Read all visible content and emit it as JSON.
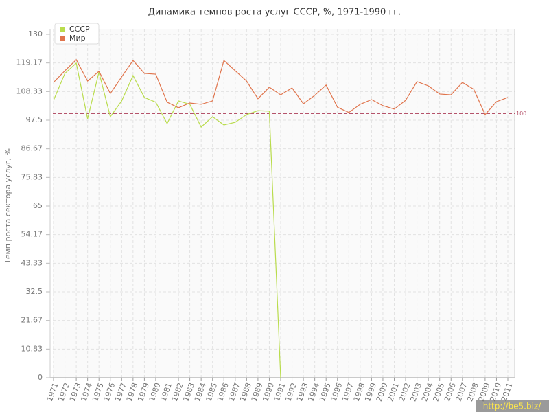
{
  "chart_data": {
    "type": "line",
    "title": "Динамика темпов роста услуг СССР, %, 1971-1990 гг.",
    "y_label": "Темп роста сектора услуг, %",
    "categories": [
      "1971",
      "1972",
      "1973",
      "1974",
      "1975",
      "1976",
      "1977",
      "1978",
      "1979",
      "1980",
      "1981",
      "1982",
      "1983",
      "1984",
      "1985",
      "1986",
      "1987",
      "1988",
      "1989",
      "1990",
      "1991",
      "1992",
      "1993",
      "1994",
      "1995",
      "1996",
      "1997",
      "1998",
      "1999",
      "2000",
      "2001",
      "2002",
      "2003",
      "2004",
      "2005",
      "2006",
      "2007",
      "2008",
      "2009",
      "2010",
      "2011"
    ],
    "series": [
      {
        "name": "СССР",
        "color": "#b9dc4c",
        "values": [
          105.0,
          115.2,
          119.1,
          98.0,
          115.7,
          98.8,
          104.8,
          114.4,
          106.1,
          104.3,
          96.2,
          104.8,
          103.5,
          94.9,
          98.8,
          95.7,
          96.7,
          99.6,
          101.1,
          100.9,
          0,
          null,
          null,
          null,
          null,
          null,
          null,
          null,
          null,
          null,
          null,
          null,
          null,
          null,
          null,
          null,
          null,
          null,
          null,
          null,
          null
        ]
      },
      {
        "name": "Мир",
        "color": "#e0744c",
        "values": [
          111.8,
          116.2,
          120.4,
          112.3,
          116.0,
          107.6,
          113.9,
          120.1,
          115.2,
          114.9,
          104.3,
          102.2,
          104.0,
          103.5,
          104.8,
          120.1,
          116.2,
          112.3,
          105.6,
          110.0,
          107.1,
          109.7,
          103.7,
          106.9,
          110.8,
          102.4,
          100.4,
          103.5,
          105.3,
          103.0,
          101.7,
          105.0,
          112.1,
          110.5,
          107.4,
          107.1,
          111.8,
          109.2,
          99.6,
          104.5,
          106.1
        ]
      }
    ],
    "ylim": [
      0,
      130
    ],
    "yticks": [
      0,
      10.83,
      21.67,
      32.5,
      43.33,
      54.17,
      65,
      75.83,
      86.67,
      97.5,
      108.33,
      119.17,
      130
    ],
    "grid": true,
    "reference_line": {
      "value": 100,
      "color": "#b5536b"
    },
    "legend": "top-left",
    "watermark": "http://be5.biz/"
  }
}
